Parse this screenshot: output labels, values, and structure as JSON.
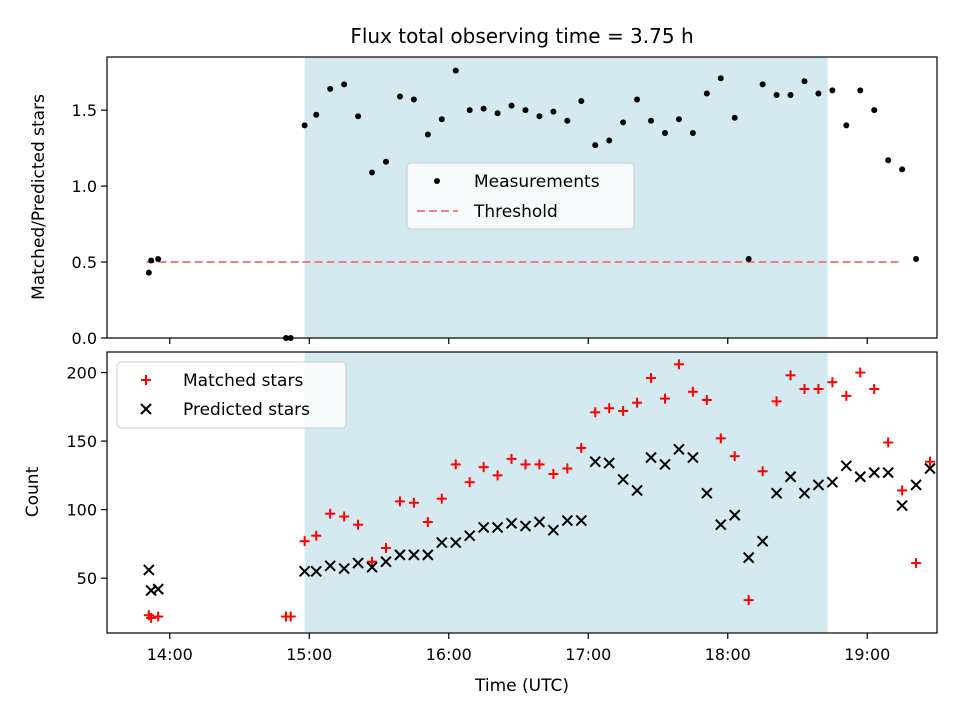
{
  "chart_data": [
    {
      "type": "scatter",
      "title": "Flux total observing time = 3.75 h",
      "xlabel": "",
      "ylabel": "Matched/Predicted stars",
      "xlim": [
        "13:33",
        "19:30"
      ],
      "ylim": [
        0,
        1.85
      ],
      "yticks": [
        "0.0",
        "0.5",
        "1.0",
        "1.5"
      ],
      "grid": false,
      "legend_position": "center",
      "shaded_region": {
        "start": "14:58",
        "end": "18:43",
        "color": "#d4eaf0"
      },
      "threshold": {
        "name": "Threshold",
        "value": 0.5,
        "x_start": "13:50",
        "x_end": "19:14",
        "color": "#f08080"
      },
      "series": [
        {
          "name": "Measurements",
          "color": "#000000",
          "marker": "dot",
          "x": [
            "13:51",
            "13:52",
            "13:55",
            "14:50",
            "14:52",
            "14:58",
            "15:03",
            "15:09",
            "15:15",
            "15:21",
            "15:27",
            "15:33",
            "15:39",
            "15:45",
            "15:51",
            "15:57",
            "16:03",
            "16:09",
            "16:15",
            "16:21",
            "16:27",
            "16:33",
            "16:39",
            "16:45",
            "16:51",
            "16:57",
            "17:03",
            "17:09",
            "17:15",
            "17:21",
            "17:27",
            "17:33",
            "17:39",
            "17:45",
            "17:51",
            "17:57",
            "18:03",
            "18:09",
            "18:15",
            "18:21",
            "18:27",
            "18:33",
            "18:39",
            "18:45",
            "18:51",
            "18:57",
            "19:03",
            "19:09",
            "19:15",
            "19:21"
          ],
          "y": [
            0.43,
            0.51,
            0.52,
            0.0,
            0.0,
            1.4,
            1.47,
            1.64,
            1.67,
            1.46,
            1.09,
            1.16,
            1.59,
            1.57,
            1.34,
            1.44,
            1.76,
            1.5,
            1.51,
            1.48,
            1.53,
            1.5,
            1.46,
            1.49,
            1.43,
            1.56,
            1.27,
            1.3,
            1.42,
            1.57,
            1.43,
            1.35,
            1.44,
            1.35,
            1.61,
            1.71,
            1.45,
            0.52,
            1.67,
            1.6,
            1.6,
            1.69,
            1.61,
            1.63,
            1.4,
            1.63,
            1.5,
            1.17,
            1.11,
            0.52
          ]
        }
      ]
    },
    {
      "type": "scatter",
      "title": "",
      "xlabel": "Time (UTC)",
      "ylabel": "Count",
      "xlim": [
        "13:33",
        "19:30"
      ],
      "ylim": [
        10,
        215
      ],
      "xticks": [
        "14:00",
        "15:00",
        "16:00",
        "17:00",
        "18:00",
        "19:00"
      ],
      "yticks": [
        "50",
        "100",
        "150",
        "200"
      ],
      "grid": false,
      "legend_position": "upper-left",
      "shaded_region": {
        "start": "14:58",
        "end": "18:43",
        "color": "#d4eaf0"
      },
      "series": [
        {
          "name": "Matched stars",
          "color": "#ff0000",
          "marker": "plus",
          "x": [
            "13:51",
            "13:52",
            "13:55",
            "14:50",
            "14:52",
            "14:58",
            "15:03",
            "15:09",
            "15:15",
            "15:21",
            "15:27",
            "15:33",
            "15:39",
            "15:45",
            "15:51",
            "15:57",
            "16:03",
            "16:09",
            "16:15",
            "16:21",
            "16:27",
            "16:33",
            "16:39",
            "16:45",
            "16:51",
            "16:57",
            "17:03",
            "17:09",
            "17:15",
            "17:21",
            "17:27",
            "17:33",
            "17:39",
            "17:45",
            "17:51",
            "17:57",
            "18:03",
            "18:09",
            "18:15",
            "18:21",
            "18:27",
            "18:33",
            "18:39",
            "18:45",
            "18:51",
            "18:57",
            "19:03",
            "19:09",
            "19:15",
            "19:21",
            "19:27"
          ],
          "y": [
            23,
            21,
            22,
            22,
            22,
            77,
            81,
            97,
            95,
            89,
            62,
            72,
            106,
            105,
            91,
            108,
            133,
            120,
            131,
            125,
            137,
            133,
            133,
            126,
            130,
            145,
            171,
            174,
            172,
            178,
            196,
            181,
            206,
            186,
            180,
            152,
            139,
            34,
            128,
            179,
            198,
            188,
            188,
            193,
            183,
            200,
            188,
            149,
            114,
            61,
            135
          ]
        },
        {
          "name": "Predicted stars",
          "color": "#000000",
          "marker": "x",
          "x": [
            "13:51",
            "13:52",
            "13:55",
            "14:58",
            "15:03",
            "15:09",
            "15:15",
            "15:21",
            "15:27",
            "15:33",
            "15:39",
            "15:45",
            "15:51",
            "15:57",
            "16:03",
            "16:09",
            "16:15",
            "16:21",
            "16:27",
            "16:33",
            "16:39",
            "16:45",
            "16:51",
            "16:57",
            "17:03",
            "17:09",
            "17:15",
            "17:21",
            "17:27",
            "17:33",
            "17:39",
            "17:45",
            "17:51",
            "17:57",
            "18:03",
            "18:09",
            "18:15",
            "18:21",
            "18:27",
            "18:33",
            "18:39",
            "18:45",
            "18:51",
            "18:57",
            "19:03",
            "19:09",
            "19:15",
            "19:21",
            "19:27"
          ],
          "y": [
            56,
            41,
            42,
            55,
            55,
            59,
            57,
            61,
            58,
            62,
            67,
            67,
            67,
            76,
            76,
            81,
            87,
            87,
            90,
            88,
            91,
            85,
            92,
            92,
            135,
            134,
            122,
            114,
            138,
            133,
            144,
            138,
            112,
            89,
            96,
            65,
            77,
            112,
            124,
            112,
            118,
            120,
            132,
            124,
            127,
            127,
            103,
            118,
            130
          ]
        }
      ]
    }
  ]
}
